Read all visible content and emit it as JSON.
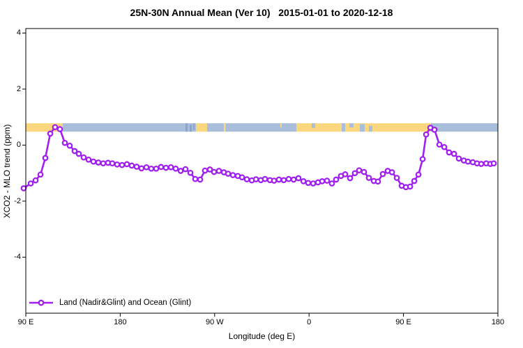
{
  "chart_data": {
    "type": "line",
    "title": "25N-30N Annual Mean (Ver 10)   2015-01-01 to 2020-12-18",
    "xlabel": "Longitude (deg E)",
    "ylabel": "XCO2 - MLO trend (ppm)",
    "x_axis": {
      "tick_labels": [
        "90 E",
        "180",
        "90 W",
        "0",
        "90 E",
        "180"
      ],
      "tick_positions_deg": [
        0,
        90,
        180,
        270,
        360,
        450
      ],
      "range_deg": [
        0,
        450
      ]
    },
    "y_axis": {
      "tick_labels": [
        "4",
        "2",
        "0",
        "-2",
        "-4"
      ],
      "tick_values": [
        4,
        2,
        0,
        -2,
        -4
      ],
      "range": [
        -6.1,
        4.15
      ],
      "grid": false
    },
    "legend": {
      "position": "bottom-left",
      "entries": [
        {
          "label": "Land (Nadir&Glint) and Ocean (Glint)",
          "color": "#A020F0",
          "marker": "open-circle"
        }
      ]
    },
    "series": [
      {
        "name": "Land (Nadir&Glint) and Ocean (Glint)",
        "color": "#A020F0",
        "marker": "open-circle",
        "points": [
          [
            -2.0,
            -1.54
          ],
          [
            4.7,
            -1.37
          ],
          [
            9.3,
            -1.26
          ],
          [
            14.0,
            -1.05
          ],
          [
            18.6,
            -0.46
          ],
          [
            23.3,
            0.41
          ],
          [
            27.9,
            0.64
          ],
          [
            32.6,
            0.57
          ],
          [
            37.2,
            0.08
          ],
          [
            41.9,
            -0.02
          ],
          [
            46.5,
            -0.21
          ],
          [
            50.5,
            -0.31
          ],
          [
            55.2,
            -0.44
          ],
          [
            59.8,
            -0.52
          ],
          [
            64.5,
            -0.59
          ],
          [
            69.1,
            -0.62
          ],
          [
            73.8,
            -0.65
          ],
          [
            78.4,
            -0.63
          ],
          [
            82.4,
            -0.65
          ],
          [
            87.1,
            -0.69
          ],
          [
            91.7,
            -0.71
          ],
          [
            96.4,
            -0.68
          ],
          [
            101.0,
            -0.73
          ],
          [
            105.7,
            -0.77
          ],
          [
            110.3,
            -0.83
          ],
          [
            115.0,
            -0.79
          ],
          [
            119.6,
            -0.84
          ],
          [
            124.3,
            -0.84
          ],
          [
            128.9,
            -0.78
          ],
          [
            133.6,
            -0.81
          ],
          [
            138.3,
            -0.79
          ],
          [
            142.9,
            -0.84
          ],
          [
            147.6,
            -0.92
          ],
          [
            152.2,
            -0.86
          ],
          [
            156.9,
            -0.99
          ],
          [
            161.5,
            -1.21
          ],
          [
            166.2,
            -1.23
          ],
          [
            170.8,
            -0.91
          ],
          [
            175.5,
            -0.87
          ],
          [
            179.5,
            -0.96
          ],
          [
            184.1,
            -0.92
          ],
          [
            188.8,
            -0.97
          ],
          [
            192.8,
            -1.02
          ],
          [
            197.4,
            -1.07
          ],
          [
            202.1,
            -1.1
          ],
          [
            206.1,
            -1.15
          ],
          [
            210.7,
            -1.22
          ],
          [
            215.4,
            -1.26
          ],
          [
            219.4,
            -1.22
          ],
          [
            224.0,
            -1.25
          ],
          [
            228.0,
            -1.21
          ],
          [
            232.7,
            -1.25
          ],
          [
            236.6,
            -1.27
          ],
          [
            241.3,
            -1.23
          ],
          [
            245.9,
            -1.25
          ],
          [
            250.6,
            -1.21
          ],
          [
            255.3,
            -1.23
          ],
          [
            259.9,
            -1.18
          ],
          [
            264.6,
            -1.29
          ],
          [
            269.2,
            -1.35
          ],
          [
            273.9,
            -1.37
          ],
          [
            278.5,
            -1.33
          ],
          [
            282.5,
            -1.29
          ],
          [
            287.1,
            -1.27
          ],
          [
            291.8,
            -1.37
          ],
          [
            295.8,
            -1.23
          ],
          [
            300.4,
            -1.1
          ],
          [
            304.4,
            -1.04
          ],
          [
            309.1,
            -1.18
          ],
          [
            313.7,
            -1.0
          ],
          [
            317.7,
            -0.9
          ],
          [
            322.4,
            -0.96
          ],
          [
            327.0,
            -1.17
          ],
          [
            331.7,
            -1.28
          ],
          [
            335.7,
            -1.3
          ],
          [
            340.3,
            -1.03
          ],
          [
            345.0,
            -0.92
          ],
          [
            349.0,
            -0.97
          ],
          [
            353.6,
            -1.17
          ],
          [
            358.3,
            -1.45
          ],
          [
            362.3,
            -1.5
          ],
          [
            366.3,
            -1.48
          ],
          [
            370.3,
            -1.28
          ],
          [
            374.3,
            -1.05
          ],
          [
            378.3,
            -0.5
          ],
          [
            381.6,
            0.38
          ],
          [
            385.6,
            0.62
          ],
          [
            389.6,
            0.55
          ],
          [
            394.2,
            0.02
          ],
          [
            398.9,
            -0.07
          ],
          [
            403.5,
            -0.26
          ],
          [
            408.2,
            -0.31
          ],
          [
            412.8,
            -0.48
          ],
          [
            417.5,
            -0.55
          ],
          [
            421.5,
            -0.59
          ],
          [
            426.1,
            -0.61
          ],
          [
            430.1,
            -0.65
          ],
          [
            434.1,
            -0.67
          ],
          [
            438.8,
            -0.65
          ],
          [
            442.8,
            -0.67
          ],
          [
            446.1,
            -0.65
          ]
        ]
      }
    ],
    "map_band": {
      "ppm_top": 0.78,
      "ppm_bottom": 0.48,
      "land_color": "#FBD87F",
      "ocean_color": "#A8BEDA",
      "shade_color": "#8CA6CB",
      "segments": [
        {
          "type": "land",
          "x0": 0,
          "x1": 35.2
        },
        {
          "type": "ocean",
          "x0": 35.2,
          "x1": 162.2
        },
        {
          "type": "land",
          "x0": 162.2,
          "x1": 172.8
        },
        {
          "type": "ocean",
          "x0": 172.8,
          "x1": 188.8
        },
        {
          "type": "land",
          "x0": 188.8,
          "x1": 190.4
        },
        {
          "type": "ocean",
          "x0": 190.4,
          "x1": 257.9
        },
        {
          "type": "land",
          "x0": 257.9,
          "x1": 386.2
        },
        {
          "type": "ocean",
          "x0": 386.2,
          "x1": 450
        }
      ],
      "details": [
        {
          "type": "shade",
          "x0": 152.2,
          "x1": 154.2,
          "f0": 0,
          "f1": 1
        },
        {
          "type": "shade",
          "x0": 156.2,
          "x1": 158.2,
          "f0": 0.2,
          "f1": 1
        },
        {
          "type": "shade",
          "x0": 159.5,
          "x1": 161.0,
          "f0": 0,
          "f1": 0.8
        },
        {
          "type": "land",
          "x0": 242.6,
          "x1": 243.9,
          "f0": 0,
          "f1": 0.5
        },
        {
          "type": "ocean",
          "x0": 272.6,
          "x1": 275.9,
          "f0": 0,
          "f1": 0.55
        },
        {
          "type": "ocean",
          "x0": 301.1,
          "x1": 304.4,
          "f0": 0,
          "f1": 1
        },
        {
          "type": "ocean",
          "x0": 308.4,
          "x1": 312.4,
          "f0": 0,
          "f1": 0.5
        },
        {
          "type": "ocean",
          "x0": 318.4,
          "x1": 323.0,
          "f0": 0.1,
          "f1": 1
        },
        {
          "type": "ocean",
          "x0": 327.0,
          "x1": 330.3,
          "f0": 0.3,
          "f1": 1
        }
      ]
    }
  }
}
